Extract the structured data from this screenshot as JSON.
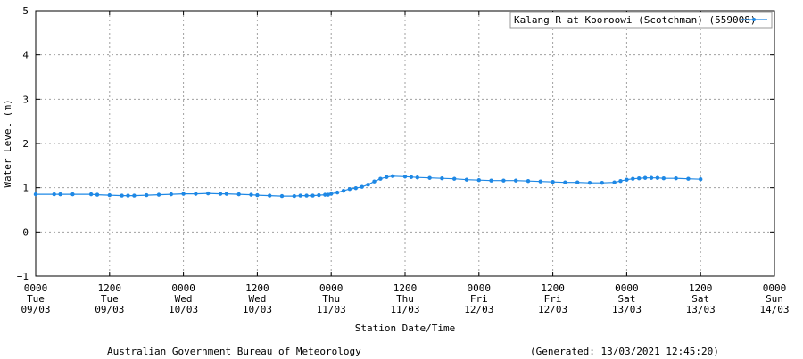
{
  "chart_data": {
    "type": "line",
    "title": "",
    "xlabel": "Station Date/Time",
    "ylabel": "Water Level (m)",
    "ylim": [
      -1,
      5
    ],
    "yticks": [
      "5",
      "4",
      "3",
      "2",
      "1",
      "0",
      "−1"
    ],
    "xlim_hours": [
      0,
      120
    ],
    "grid": true,
    "legend_placement": "top-right",
    "x_ticks": [
      {
        "hours": 0,
        "time": "0000",
        "day": "Tue",
        "date": "09/03"
      },
      {
        "hours": 12,
        "time": "1200",
        "day": "Tue",
        "date": "09/03"
      },
      {
        "hours": 24,
        "time": "0000",
        "day": "Wed",
        "date": "10/03"
      },
      {
        "hours": 36,
        "time": "1200",
        "day": "Wed",
        "date": "10/03"
      },
      {
        "hours": 48,
        "time": "0000",
        "day": "Thu",
        "date": "11/03"
      },
      {
        "hours": 60,
        "time": "1200",
        "day": "Thu",
        "date": "11/03"
      },
      {
        "hours": 72,
        "time": "0000",
        "day": "Fri",
        "date": "12/03"
      },
      {
        "hours": 84,
        "time": "1200",
        "day": "Fri",
        "date": "12/03"
      },
      {
        "hours": 96,
        "time": "0000",
        "day": "Sat",
        "date": "13/03"
      },
      {
        "hours": 108,
        "time": "1200",
        "day": "Sat",
        "date": "13/03"
      },
      {
        "hours": 120,
        "time": "0000",
        "day": "Sun",
        "date": "14/03"
      }
    ],
    "series": [
      {
        "name": "Kalang R at Kooroowi (Scotchman) (559008)",
        "color": "#1e88e5",
        "x": [
          0,
          3,
          4,
          6,
          9,
          10,
          12,
          14,
          15,
          16,
          18,
          20,
          22,
          24,
          26,
          28,
          30,
          31,
          33,
          35,
          36,
          38,
          40,
          42,
          43,
          44,
          45,
          46,
          47,
          47.5,
          48,
          49,
          50,
          51,
          52,
          53,
          54,
          55,
          56,
          57,
          58,
          60,
          61,
          62,
          64,
          66,
          68,
          70,
          72,
          74,
          76,
          78,
          80,
          82,
          84,
          86,
          88,
          90,
          92,
          94,
          95,
          96,
          97,
          98,
          99,
          100,
          101,
          102,
          104,
          106,
          108
        ],
        "values": [
          0.85,
          0.85,
          0.85,
          0.85,
          0.85,
          0.84,
          0.83,
          0.82,
          0.82,
          0.82,
          0.83,
          0.84,
          0.85,
          0.86,
          0.86,
          0.87,
          0.86,
          0.86,
          0.85,
          0.84,
          0.83,
          0.82,
          0.81,
          0.81,
          0.82,
          0.82,
          0.82,
          0.83,
          0.84,
          0.84,
          0.86,
          0.89,
          0.93,
          0.97,
          0.99,
          1.02,
          1.07,
          1.14,
          1.2,
          1.24,
          1.26,
          1.25,
          1.24,
          1.23,
          1.22,
          1.21,
          1.2,
          1.18,
          1.17,
          1.16,
          1.16,
          1.16,
          1.15,
          1.14,
          1.13,
          1.12,
          1.12,
          1.11,
          1.11,
          1.12,
          1.15,
          1.18,
          1.2,
          1.21,
          1.22,
          1.22,
          1.22,
          1.21,
          1.21,
          1.2,
          1.19
        ]
      }
    ]
  },
  "footer": {
    "agency": "Australian Government Bureau of Meteorology",
    "generated": "(Generated: 13/03/2021 12:45:20)"
  }
}
